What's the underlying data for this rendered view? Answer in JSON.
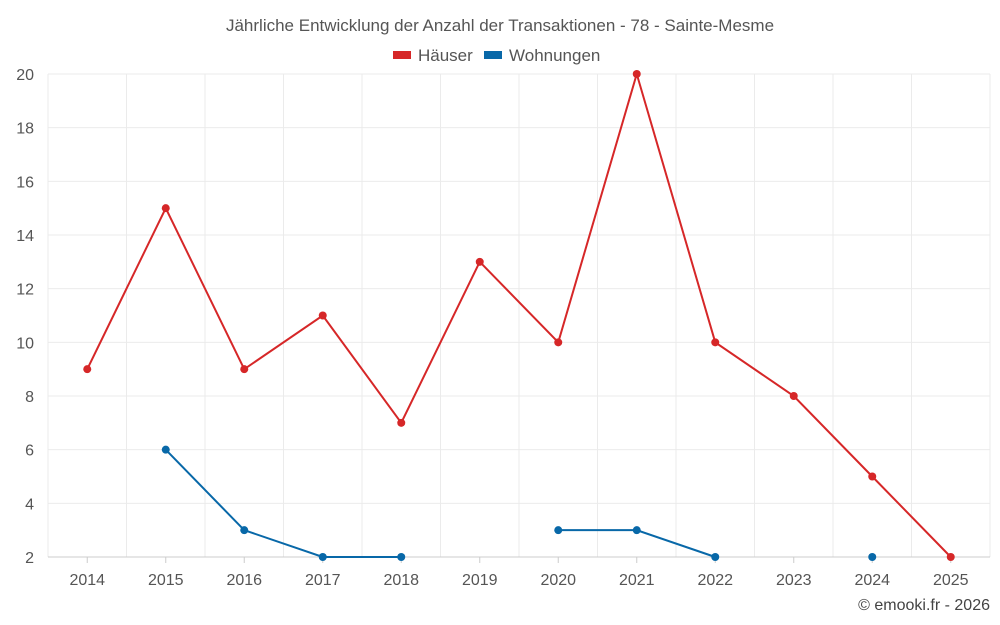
{
  "chart_data": {
    "type": "line",
    "title": "Jährliche Entwicklung der Anzahl der Transaktionen - 78 - Sainte-Mesme",
    "categories": [
      "2014",
      "2015",
      "2016",
      "2017",
      "2018",
      "2019",
      "2020",
      "2021",
      "2022",
      "2023",
      "2024",
      "2025"
    ],
    "series": [
      {
        "name": "Häuser",
        "color": "#d62728",
        "values": [
          9,
          15,
          9,
          11,
          7,
          13,
          10,
          20,
          10,
          8,
          5,
          2
        ]
      },
      {
        "name": "Wohnungen",
        "color": "#0868a8",
        "values": [
          null,
          6,
          3,
          2,
          2,
          null,
          3,
          3,
          2,
          null,
          2,
          null
        ]
      }
    ],
    "ylim": [
      2,
      20
    ],
    "yticks": [
      2,
      4,
      6,
      8,
      10,
      12,
      14,
      16,
      18,
      20
    ],
    "xlabel": "",
    "ylabel": "",
    "grid": true,
    "legend": "top-center",
    "credit": "© emooki.fr - 2026"
  }
}
